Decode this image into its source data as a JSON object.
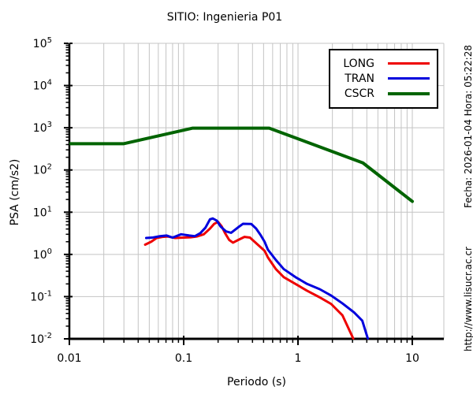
{
  "title": "SITIO: Ingenieria P01",
  "background": "#ffffff",
  "axes": {
    "xlabel": "Periodo (s)",
    "ylabel": "PSA (cm/s2)",
    "x_ticks": [
      {
        "v": 0.01,
        "label": "0.01"
      },
      {
        "v": 0.1,
        "label": "0.1"
      },
      {
        "v": 1,
        "label": "1"
      },
      {
        "v": 10,
        "label": "10"
      }
    ],
    "y_tick_exponents": [
      -2,
      -1,
      0,
      1,
      2,
      3,
      4,
      5
    ],
    "grid_color": "#c4c4c4"
  },
  "watermarks": {
    "date": "Fecha: 2026-01-04 Hora: 05:22:28",
    "url": "http://www.lisucr.ac.cr"
  },
  "legend": {
    "items": [
      {
        "label": "LONG",
        "color": "#ee0000",
        "width": 3
      },
      {
        "label": "TRAN",
        "color": "#0000dd",
        "width": 3
      },
      {
        "label": "CSCR",
        "color": "#006400",
        "width": 4
      }
    ]
  },
  "chart_data": {
    "type": "line",
    "xscale": "log",
    "yscale": "log",
    "xlim": [
      0.01,
      18.87
    ],
    "ylim": [
      0.01,
      100000
    ],
    "title": "SITIO: Ingenieria P01",
    "xlabel": "Periodo (s)",
    "ylabel": "PSA (cm/s2)",
    "grid": "vertical gridlines at log minors+majors, horizontal at decades only",
    "legend_position": "top-right",
    "series": [
      {
        "name": "LONG",
        "color": "#ee0000",
        "width": 3,
        "points": [
          [
            0.046,
            1.7
          ],
          [
            0.052,
            2.0
          ],
          [
            0.058,
            2.45
          ],
          [
            0.065,
            2.6
          ],
          [
            0.073,
            2.65
          ],
          [
            0.084,
            2.45
          ],
          [
            0.1,
            2.5
          ],
          [
            0.115,
            2.55
          ],
          [
            0.13,
            2.65
          ],
          [
            0.15,
            3.0
          ],
          [
            0.17,
            4.1
          ],
          [
            0.185,
            5.3
          ],
          [
            0.2,
            5.9
          ],
          [
            0.215,
            4.6
          ],
          [
            0.23,
            3.2
          ],
          [
            0.25,
            2.2
          ],
          [
            0.27,
            1.9
          ],
          [
            0.3,
            2.2
          ],
          [
            0.34,
            2.6
          ],
          [
            0.38,
            2.5
          ],
          [
            0.44,
            1.75
          ],
          [
            0.51,
            1.22
          ],
          [
            0.545,
            0.85
          ],
          [
            0.6,
            0.58
          ],
          [
            0.64,
            0.45
          ],
          [
            0.75,
            0.29
          ],
          [
            0.95,
            0.2
          ],
          [
            1.2,
            0.138
          ],
          [
            1.55,
            0.096
          ],
          [
            1.95,
            0.067
          ],
          [
            2.45,
            0.036
          ],
          [
            3.04,
            0.0102
          ]
        ]
      },
      {
        "name": "TRAN",
        "color": "#0000dd",
        "width": 3,
        "points": [
          [
            0.047,
            2.45
          ],
          [
            0.053,
            2.5
          ],
          [
            0.062,
            2.7
          ],
          [
            0.071,
            2.8
          ],
          [
            0.08,
            2.5
          ],
          [
            0.095,
            3.0
          ],
          [
            0.112,
            2.8
          ],
          [
            0.125,
            2.7
          ],
          [
            0.14,
            3.2
          ],
          [
            0.155,
            4.3
          ],
          [
            0.17,
            6.8
          ],
          [
            0.18,
            7.1
          ],
          [
            0.195,
            6.3
          ],
          [
            0.21,
            4.6
          ],
          [
            0.235,
            3.5
          ],
          [
            0.26,
            3.25
          ],
          [
            0.3,
            4.4
          ],
          [
            0.33,
            5.3
          ],
          [
            0.39,
            5.25
          ],
          [
            0.43,
            4.1
          ],
          [
            0.47,
            2.9
          ],
          [
            0.51,
            2.0
          ],
          [
            0.545,
            1.3
          ],
          [
            0.64,
            0.74
          ],
          [
            0.75,
            0.45
          ],
          [
            0.95,
            0.29
          ],
          [
            1.2,
            0.2
          ],
          [
            1.55,
            0.15
          ],
          [
            1.95,
            0.106
          ],
          [
            2.45,
            0.069
          ],
          [
            3.1,
            0.042
          ],
          [
            3.65,
            0.027
          ],
          [
            4.08,
            0.0102
          ]
        ]
      },
      {
        "name": "CSCR",
        "color": "#006400",
        "width": 4,
        "points": [
          [
            0.01,
            420
          ],
          [
            0.03,
            420
          ],
          [
            0.12,
            980
          ],
          [
            0.56,
            980
          ],
          [
            3.7,
            147
          ],
          [
            10,
            18
          ]
        ]
      }
    ]
  }
}
